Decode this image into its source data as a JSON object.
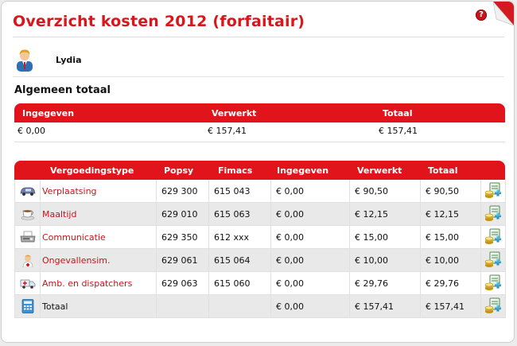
{
  "header": {
    "title": "Overzicht kosten 2012 (forfaitair)",
    "help_glyph": "?"
  },
  "user": {
    "name": "Lydia"
  },
  "totals_section": {
    "title": "Algemeen totaal",
    "columns": [
      "Ingegeven",
      "Verwerkt",
      "Totaal"
    ],
    "values": [
      "€ 0,00",
      "€ 157,41",
      "€ 157,41"
    ]
  },
  "costs_table": {
    "columns": [
      "Vergoedingstype",
      "Popsy",
      "Fimacs",
      "Ingegeven",
      "Verwerkt",
      "Totaal"
    ],
    "rows": [
      {
        "icon": "car-icon",
        "type": "Verplaatsing",
        "popsy": "629 300",
        "fimacs": "615 043",
        "ingegeven": "€ 0,00",
        "verwerkt": "€ 90,50",
        "totaal": "€ 90,50"
      },
      {
        "icon": "coffee-cup-icon",
        "type": "Maaltijd",
        "popsy": "629 010",
        "fimacs": "615 063",
        "ingegeven": "€ 0,00",
        "verwerkt": "€ 12,15",
        "totaal": "€ 12,15"
      },
      {
        "icon": "fax-icon",
        "type": "Communicatie",
        "popsy": "629 350",
        "fimacs": "612 xxx",
        "ingegeven": "€ 0,00",
        "verwerkt": "€ 15,00",
        "totaal": "€ 15,00"
      },
      {
        "icon": "nurse-icon",
        "type": "Ongevallensim.",
        "popsy": "629 061",
        "fimacs": "615 064",
        "ingegeven": "€ 0,00",
        "verwerkt": "€ 10,00",
        "totaal": "€ 10,00"
      },
      {
        "icon": "ambulance-icon",
        "type": "Amb. en dispatchers",
        "popsy": "629 063",
        "fimacs": "615 060",
        "ingegeven": "€ 0,00",
        "verwerkt": "€ 29,76",
        "totaal": "€ 29,76"
      }
    ],
    "total_row": {
      "icon": "calculator-icon",
      "label": "Totaal",
      "ingegeven": "€ 0,00",
      "verwerkt": "€ 157,41",
      "totaal": "€ 157,41"
    }
  },
  "colors": {
    "accent": "#e1141b",
    "link": "#c4161c",
    "row_alt": "#e9e9e9"
  }
}
